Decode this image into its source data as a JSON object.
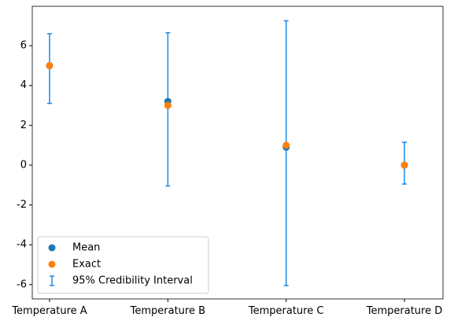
{
  "chart_data": {
    "type": "errorbar",
    "categories": [
      "Temperature A",
      "Temperature B",
      "Temperature C",
      "Temperature D"
    ],
    "series": [
      {
        "name": "Mean",
        "color": "#1f77b4",
        "values": [
          5.0,
          3.2,
          0.9,
          0.0
        ]
      },
      {
        "name": "Exact",
        "color": "#ff7f0e",
        "values": [
          5,
          3,
          1,
          0
        ]
      }
    ],
    "interval": {
      "name": "95% Credibility Interval",
      "color": "#1e88e5",
      "lower": [
        3.1,
        -1.05,
        -6.05,
        -0.95
      ],
      "upper": [
        6.6,
        6.65,
        7.25,
        1.15
      ]
    },
    "ylim": [
      -6.72,
      7.98
    ],
    "yticks": [
      -6,
      -4,
      -2,
      0,
      2,
      4,
      6
    ],
    "legend": "lower left",
    "grid": false
  }
}
